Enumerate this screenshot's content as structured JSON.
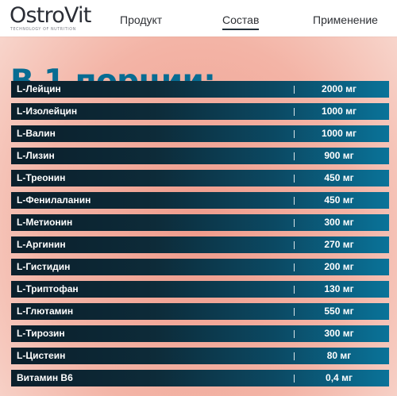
{
  "header": {
    "brand": {
      "name": "OstroVit",
      "tagline": "TECHNOLOGY OF NUTRITION"
    },
    "nav": [
      {
        "label": "Продукт",
        "active": false
      },
      {
        "label": "Состав",
        "active": true
      },
      {
        "label": "Применение",
        "active": false
      }
    ]
  },
  "main": {
    "heading": "В 1 порции:",
    "rows": [
      {
        "name": "L-Лейцин",
        "value": "2000 мг"
      },
      {
        "name": "L-Изолейцин",
        "value": "1000 мг"
      },
      {
        "name": "L-Валин",
        "value": "1000 мг"
      },
      {
        "name": "L-Лизин",
        "value": "900 мг"
      },
      {
        "name": "L-Треонин",
        "value": "450 мг"
      },
      {
        "name": "L-Фенилаланин",
        "value": "450 мг"
      },
      {
        "name": "L-Метионин",
        "value": "300 мг"
      },
      {
        "name": "L-Аргинин",
        "value": "270 мг"
      },
      {
        "name": "L-Гистидин",
        "value": "200 мг"
      },
      {
        "name": "L-Триптофан",
        "value": "130 мг"
      },
      {
        "name": "L-Глютамин",
        "value": "550 мг"
      },
      {
        "name": "L-Тирозин",
        "value": "300 мг"
      },
      {
        "name": "L-Цистеин",
        "value": "80 мг"
      },
      {
        "name": "Витамин B6",
        "value": "0,4 мг"
      }
    ]
  },
  "colors": {
    "heading": "#076c92",
    "row_dark": "#0b1f2b",
    "row_light": "#0a7399",
    "background_center": "#f09c8c",
    "background_edge": "#fbece7"
  }
}
